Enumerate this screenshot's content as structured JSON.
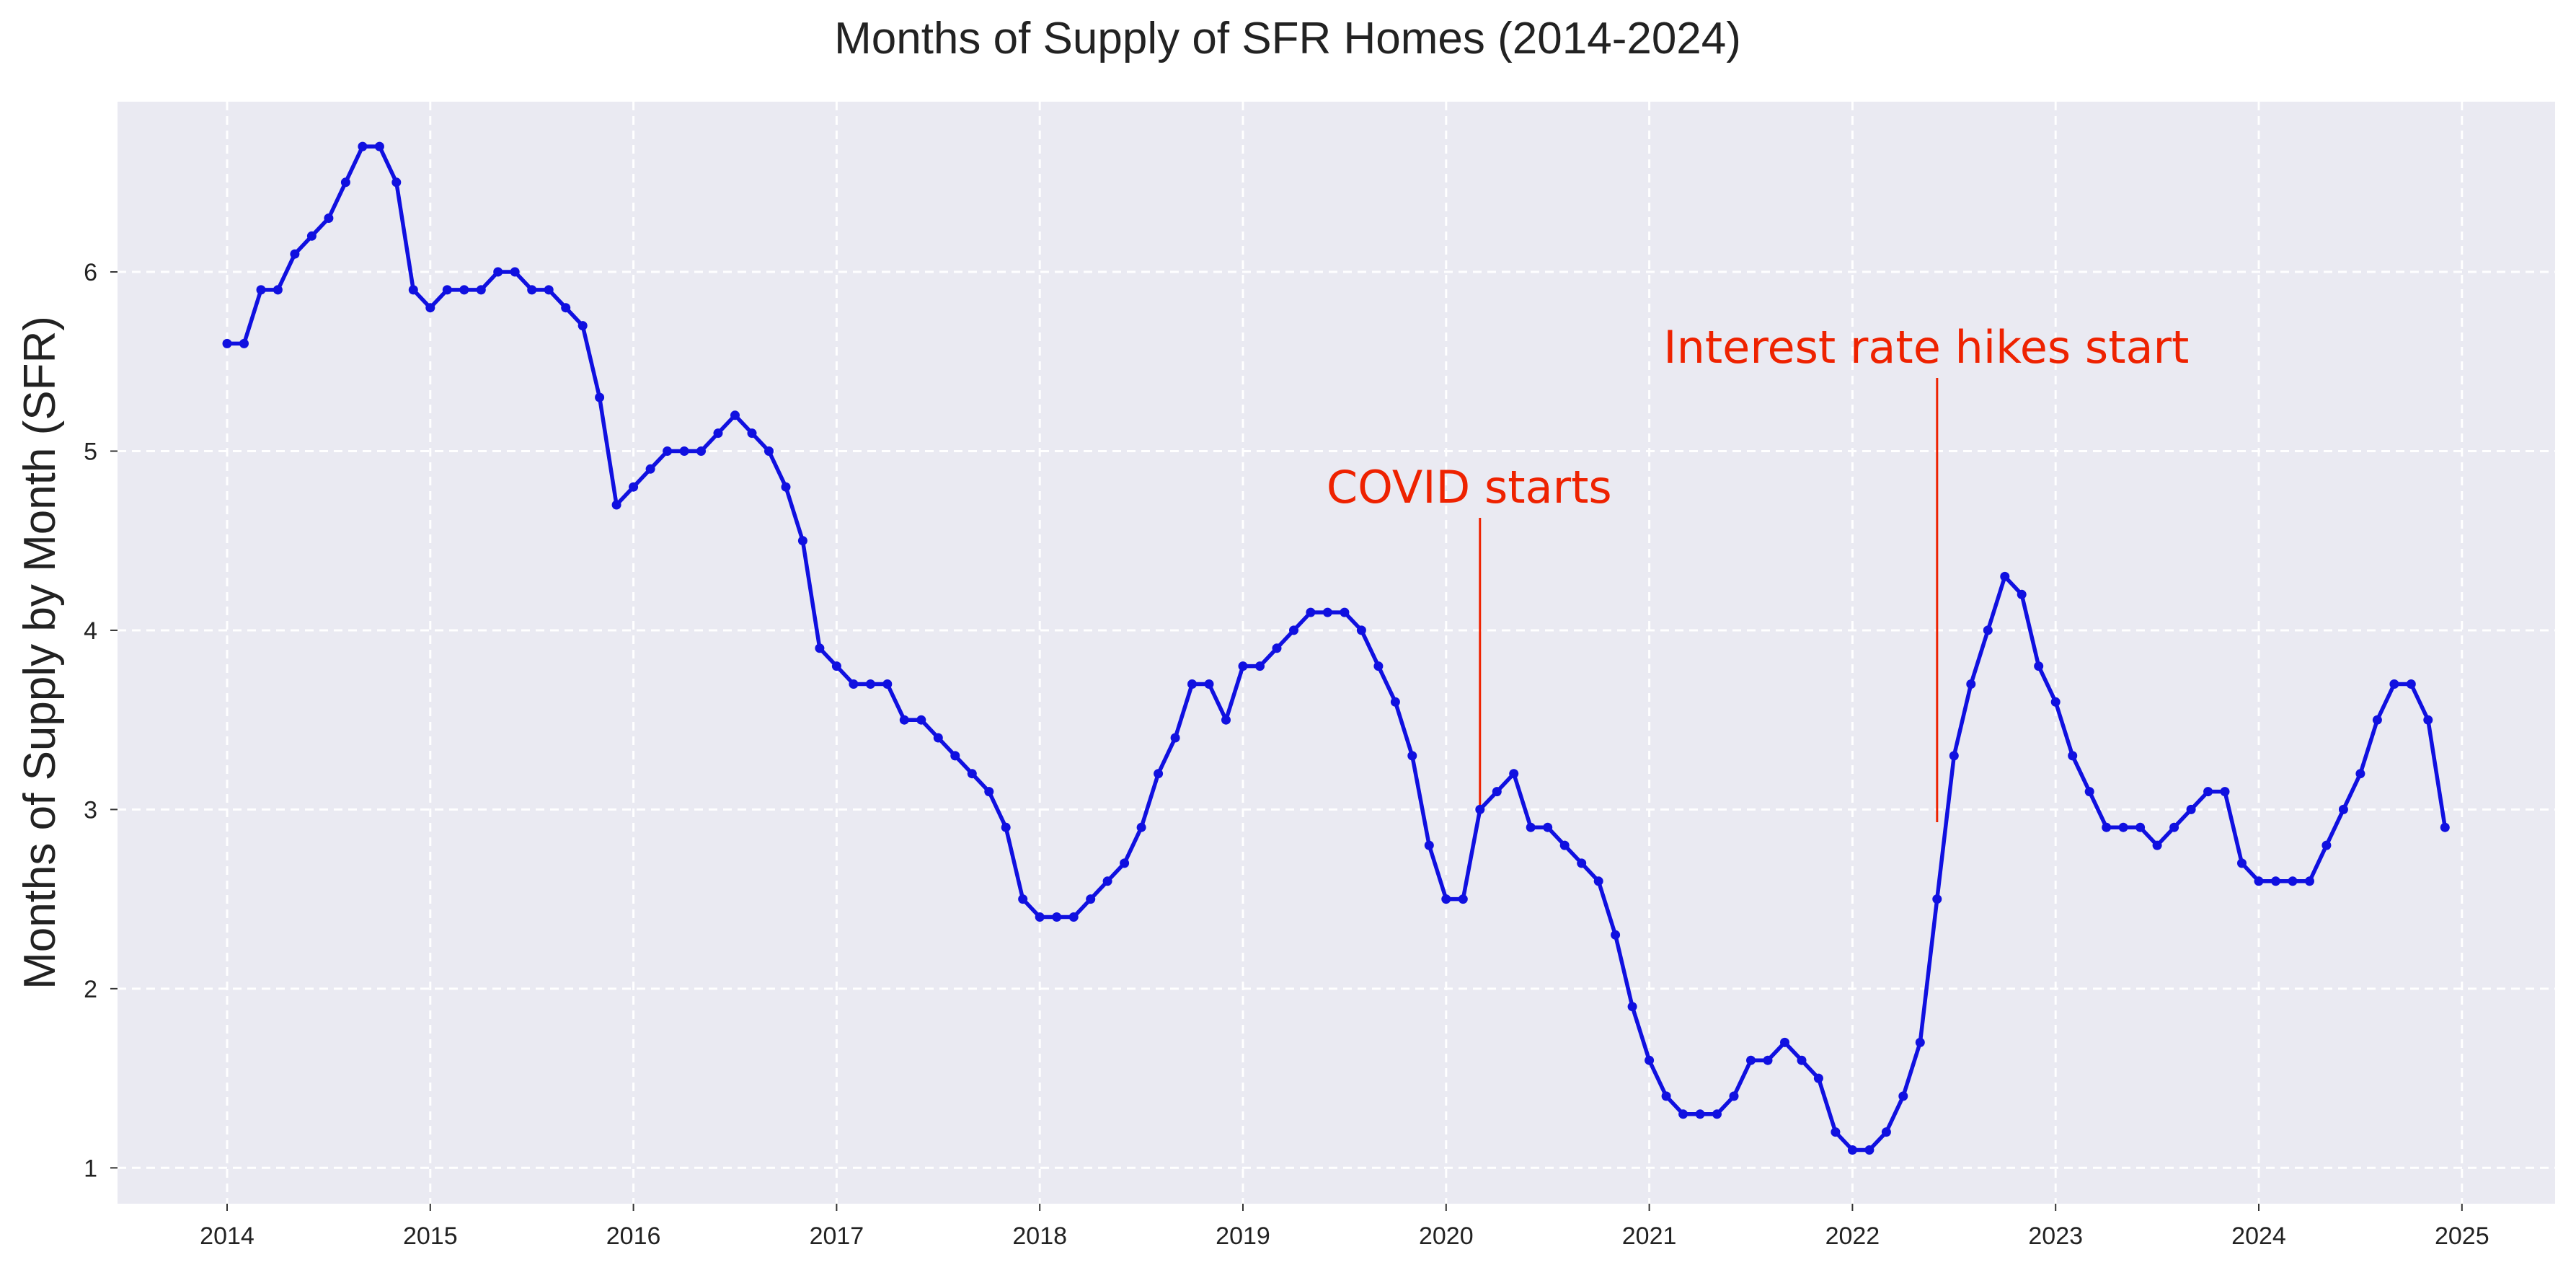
{
  "chart_data": {
    "type": "line",
    "title": "Months of Supply of SFR Homes (2014-2024)",
    "xlabel": "",
    "ylabel": "Months of Supply by Month (SFR)",
    "x_start": "2014-01",
    "x_tick_labels": [
      "2014",
      "2015",
      "2016",
      "2017",
      "2018",
      "2019",
      "2020",
      "2021",
      "2022",
      "2023",
      "2024",
      "2025"
    ],
    "y_tick_labels": [
      "1",
      "2",
      "3",
      "4",
      "5",
      "6"
    ],
    "ylim": [
      0.8,
      6.95
    ],
    "grid": true,
    "line_color": "#1010e0",
    "plot_background": "#eaeaf2",
    "series": [
      {
        "values": [
          5.6,
          5.6,
          5.9,
          5.9,
          6.1,
          6.2,
          6.3,
          6.5,
          6.7,
          6.7,
          6.5,
          5.9,
          5.8,
          5.9,
          5.9,
          5.9,
          6.0,
          6.0,
          5.9,
          5.9,
          5.8,
          5.7,
          5.3,
          4.7,
          4.8,
          4.9,
          5.0,
          5.0,
          5.0,
          5.1,
          5.2,
          5.1,
          5.0,
          4.8,
          4.5,
          3.9,
          3.8,
          3.7,
          3.7,
          3.7,
          3.5,
          3.5,
          3.4,
          3.3,
          3.2,
          3.1,
          2.9,
          2.5,
          2.4,
          2.4,
          2.4,
          2.5,
          2.6,
          2.7,
          2.9,
          3.2,
          3.4,
          3.7,
          3.7,
          3.5,
          3.8,
          3.8,
          3.9,
          4.0,
          4.1,
          4.1,
          4.1,
          4.0,
          3.8,
          3.6,
          3.3,
          2.8,
          2.5,
          2.5,
          3.0,
          3.1,
          3.2,
          2.9,
          2.9,
          2.8,
          2.7,
          2.6,
          2.3,
          1.9,
          1.6,
          1.4,
          1.3,
          1.3,
          1.3,
          1.4,
          1.6,
          1.6,
          1.7,
          1.6,
          1.5,
          1.2,
          1.1,
          1.1,
          1.2,
          1.4,
          1.7,
          2.5,
          3.3,
          3.7,
          4.0,
          4.3,
          4.2,
          3.8,
          3.6,
          3.3,
          3.1,
          2.9,
          2.9,
          2.9,
          2.8,
          2.9,
          3.0,
          3.1,
          3.1,
          2.7,
          2.6,
          2.6,
          2.6,
          2.6,
          2.8,
          3.0,
          3.2,
          3.5,
          3.7,
          3.7,
          3.5,
          2.9
        ]
      }
    ],
    "annotations": [
      {
        "text": "COVID starts",
        "x": "2020-03",
        "color": "#ee2200"
      },
      {
        "text": "Interest rate hikes start",
        "x": "2022-06",
        "color": "#ee2200"
      }
    ]
  }
}
